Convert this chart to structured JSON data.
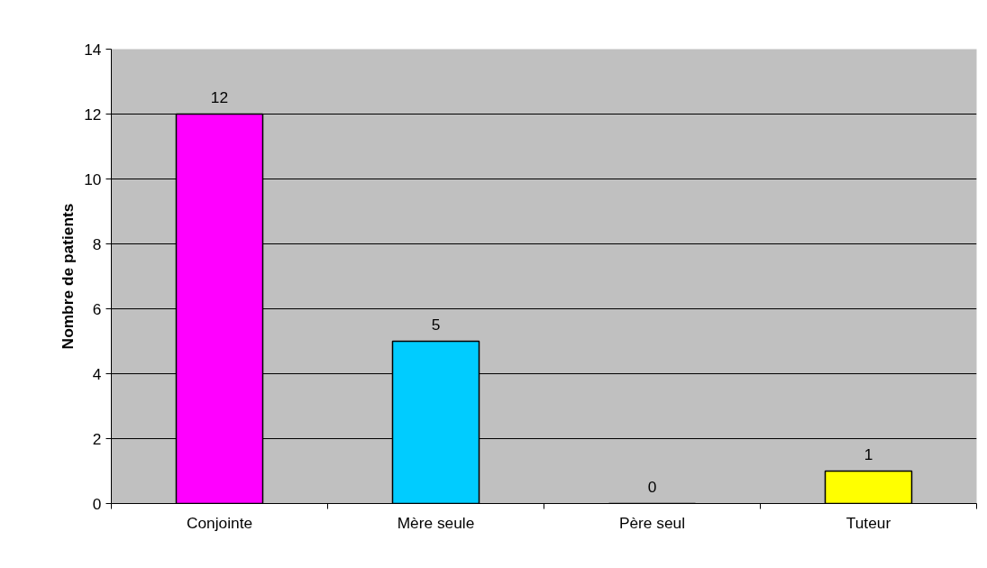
{
  "chart_data": {
    "type": "bar",
    "ylabel": "Nombre de patients",
    "categories": [
      "Conjointe",
      "Mère seule",
      "Père seul",
      "Tuteur"
    ],
    "values": [
      12,
      5,
      0,
      1
    ],
    "colors": [
      "#ff00ff",
      "#00ccff",
      "#000000",
      "#ffff00"
    ],
    "ylim": [
      0,
      14
    ],
    "yticks": [
      0,
      2,
      4,
      6,
      8,
      10,
      12,
      14
    ],
    "grid": "y",
    "data_labels": true
  }
}
